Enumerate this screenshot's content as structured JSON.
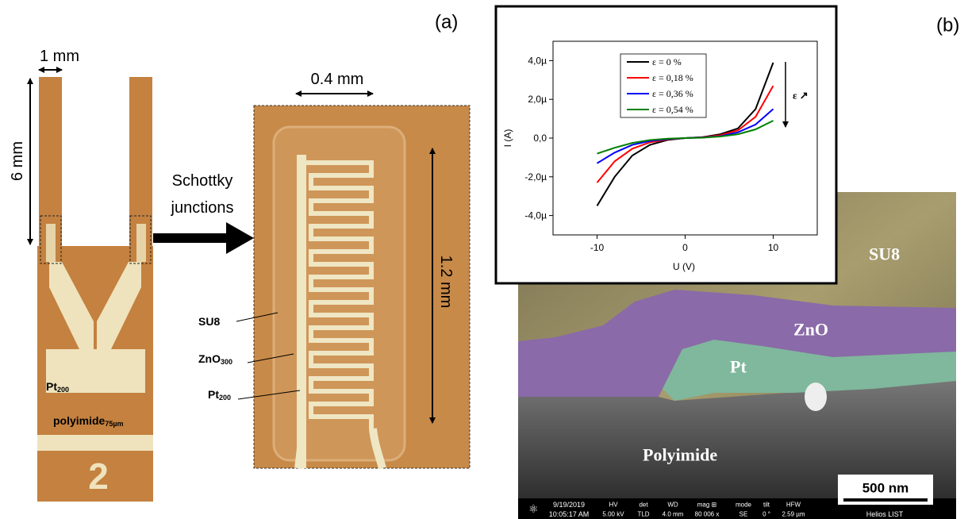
{
  "panel_a": {
    "label": "(a)",
    "width_label": "1 mm",
    "length_label": "6 mm",
    "arrow_label": [
      "Schottky",
      "junctions"
    ],
    "zoom_width_label": "0.4 mm",
    "zoom_length_label": "1.2 mm",
    "sample_number": "2",
    "sample_layers": [
      {
        "text": "Pt",
        "sub": "200"
      },
      {
        "text": "polyimide",
        "sub": "75µm"
      }
    ],
    "zoom_layers": [
      {
        "text": "SU8"
      },
      {
        "text": "ZnO",
        "sub": "300"
      },
      {
        "text": "Pt",
        "sub": "200"
      }
    ]
  },
  "panel_b": {
    "label": "(b)",
    "layers": [
      "SU8",
      "ZnO",
      "Pt",
      "Polyimide"
    ],
    "scale_bar": "500 nm",
    "info_bar": {
      "date": "9/19/2019",
      "time": "10:05:17 AM",
      "fields": [
        {
          "name": "HV",
          "value": "5.00 kV"
        },
        {
          "name": "det",
          "value": "TLD"
        },
        {
          "name": "WD",
          "value": "4.0 mm"
        },
        {
          "name": "mag ⊞",
          "value": "80 006 x"
        },
        {
          "name": "mode",
          "value": "SE"
        },
        {
          "name": "tilt",
          "value": "0 °"
        },
        {
          "name": "HFW",
          "value": "2.59 µm"
        }
      ],
      "instrument": "Helios LIST"
    }
  },
  "chart_data": {
    "type": "line",
    "x_label": "U (V)",
    "y_label": "I (A)",
    "x": [
      -10,
      -8,
      -6,
      -4,
      -2,
      0,
      2,
      4,
      6,
      8,
      10
    ],
    "series": [
      {
        "name": "ε = 0 %",
        "color": "#000000",
        "values": [
          -3.5e-06,
          -2e-06,
          -9e-07,
          -3.5e-07,
          -1e-07,
          0,
          5e-08,
          2e-07,
          5e-07,
          1.5e-06,
          3.9e-06
        ]
      },
      {
        "name": "ε = 0,18 %",
        "color": "#ff0000",
        "values": [
          -2.3e-06,
          -1.2e-06,
          -5.5e-07,
          -2.2e-07,
          -7e-08,
          0,
          4e-08,
          1.5e-07,
          4e-07,
          1.1e-06,
          2.7e-06
        ]
      },
      {
        "name": "ε = 0,36 %",
        "color": "#0000ff",
        "values": [
          -1.3e-06,
          -7.5e-07,
          -3.5e-07,
          -1.5e-07,
          -5e-08,
          0,
          3e-08,
          1e-07,
          3e-07,
          7e-07,
          1.5e-06
        ]
      },
      {
        "name": "ε = 0,54 %",
        "color": "#008000",
        "values": [
          -8e-07,
          -5e-07,
          -2.5e-07,
          -1e-07,
          -3e-08,
          0,
          2e-08,
          8e-08,
          2e-07,
          4.5e-07,
          9e-07
        ]
      }
    ],
    "annotation": "ε ↗",
    "xlim": [
      -15,
      15
    ],
    "xticks": [
      -10,
      0,
      10
    ],
    "ylim": [
      -5e-06,
      5e-06
    ],
    "yticks": [
      {
        "value": -4e-06,
        "label": "-4,0µ"
      },
      {
        "value": -2e-06,
        "label": "-2,0µ"
      },
      {
        "value": 0,
        "label": "0,0"
      },
      {
        "value": 2e-06,
        "label": "2,0µ"
      },
      {
        "value": 4e-06,
        "label": "4,0µ"
      }
    ],
    "legend": "top-left"
  }
}
